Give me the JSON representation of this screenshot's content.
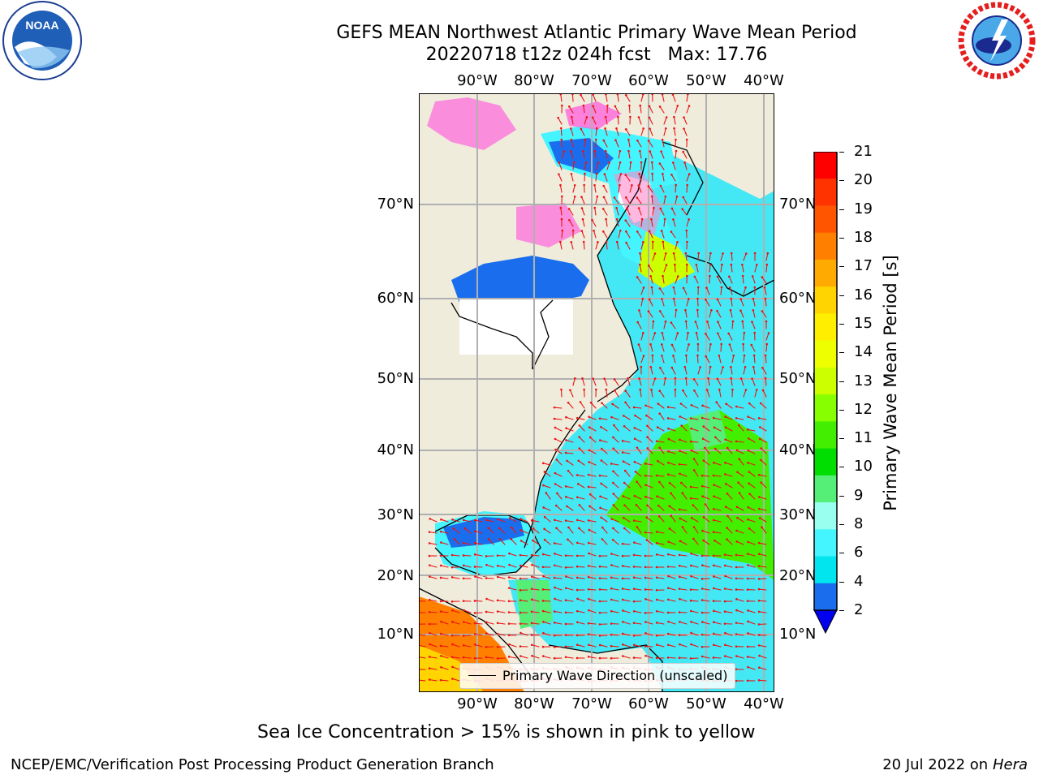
{
  "header": {
    "title_line1": "GEFS MEAN Northwest Atlantic Primary Wave Mean Period",
    "title_line2": "20220718 t12z 024h fcst   Max: 17.76"
  },
  "logos": {
    "left": "NOAA",
    "left_ring_text": "NATIONAL OCEANIC AND ATMOSPHERIC ADMINISTRATION · U.S. DEPARTMENT OF COMMERCE",
    "right_ring_text": "NATIONAL WEATHER SERVICE"
  },
  "map": {
    "lon_labels": [
      "90°W",
      "80°W",
      "70°W",
      "60°W",
      "50°W",
      "40°W"
    ],
    "lat_labels": [
      "70°N",
      "60°N",
      "50°N",
      "40°N",
      "30°N",
      "20°N",
      "10°N"
    ],
    "legend_label": "Primary Wave Direction (unscaled)",
    "land_color": "#efecdc",
    "ocean_color": "#44e8f4",
    "arrow_color": "#ee1111"
  },
  "colorbar": {
    "label": "Primary Wave Mean Period [s]",
    "ticks": [
      "21",
      "20",
      "19",
      "18",
      "17",
      "16",
      "15",
      "14",
      "13",
      "12",
      "11",
      "10",
      "9",
      "8",
      "6",
      "4",
      "2"
    ],
    "colors": [
      "#ff0000",
      "#ff3300",
      "#ff5500",
      "#ff8000",
      "#ffaa00",
      "#ffd400",
      "#ffee00",
      "#eeff00",
      "#ccff00",
      "#88ff00",
      "#44ee00",
      "#00dd00",
      "#55ee77",
      "#99ffee",
      "#44f4ff",
      "#00e5ee",
      "#1a6eee"
    ],
    "under_color": "#0000ee"
  },
  "caption": "Sea Ice Concentration > 15% is shown in pink to yellow",
  "footer": {
    "left": "NCEP/EMC/Verification Post Processing Product Generation Branch",
    "right_date": "20 Jul 2022 on ",
    "right_host": "Hera"
  }
}
